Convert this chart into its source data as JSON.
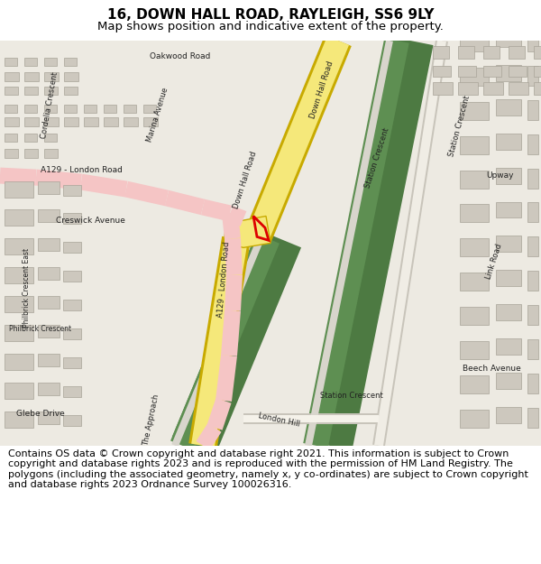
{
  "title_line1": "16, DOWN HALL ROAD, RAYLEIGH, SS6 9LY",
  "title_line2": "Map shows position and indicative extent of the property.",
  "copyright_text": "Contains OS data © Crown copyright and database right 2021. This information is subject to Crown copyright and database rights 2023 and is reproduced with the permission of HM Land Registry. The polygons (including the associated geometry, namely x, y co-ordinates) are subject to Crown copyright and database rights 2023 Ordnance Survey 100026316.",
  "bg_color": "#ffffff",
  "map_bg": "#eeebe3",
  "title_fontsize": 11,
  "subtitle_fontsize": 9.5,
  "copyright_fontsize": 8.0
}
